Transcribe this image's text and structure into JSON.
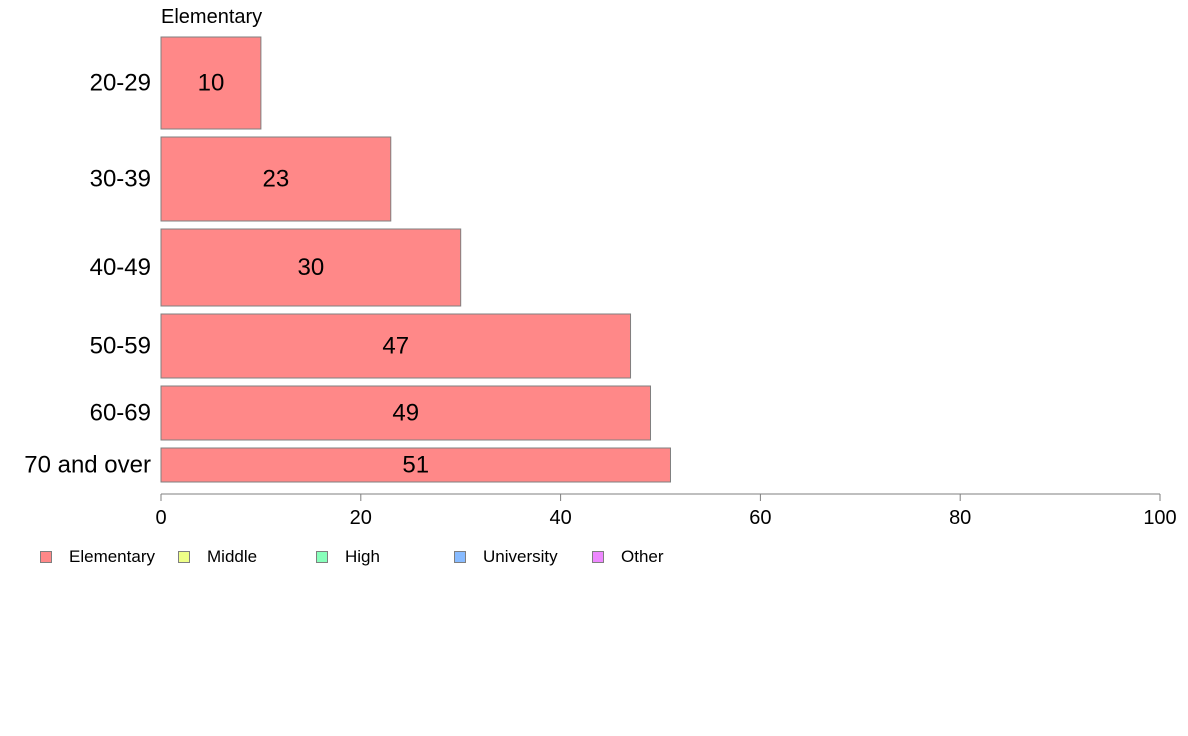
{
  "chart_data": {
    "type": "bar",
    "orientation": "horizontal",
    "panel_title": "Elementary",
    "categories": [
      "20-29",
      "30-39",
      "40-49",
      "50-59",
      "60-69",
      "70 and over"
    ],
    "series": [
      {
        "name": "Elementary",
        "color": "#ff8888",
        "values": [
          10,
          23,
          30,
          47,
          49,
          51
        ]
      }
    ],
    "xlim": [
      0,
      100
    ],
    "xticks": [
      0,
      20,
      40,
      60,
      80,
      100
    ],
    "grid": false,
    "legend_position": "bottom-left",
    "legend": [
      {
        "label": "Elementary",
        "color": "#ff8888"
      },
      {
        "label": "Middle",
        "color": "#eeff88"
      },
      {
        "label": "High",
        "color": "#88ffbb"
      },
      {
        "label": "University",
        "color": "#88bbff"
      },
      {
        "label": "Other",
        "color": "#ee88ff"
      }
    ]
  }
}
